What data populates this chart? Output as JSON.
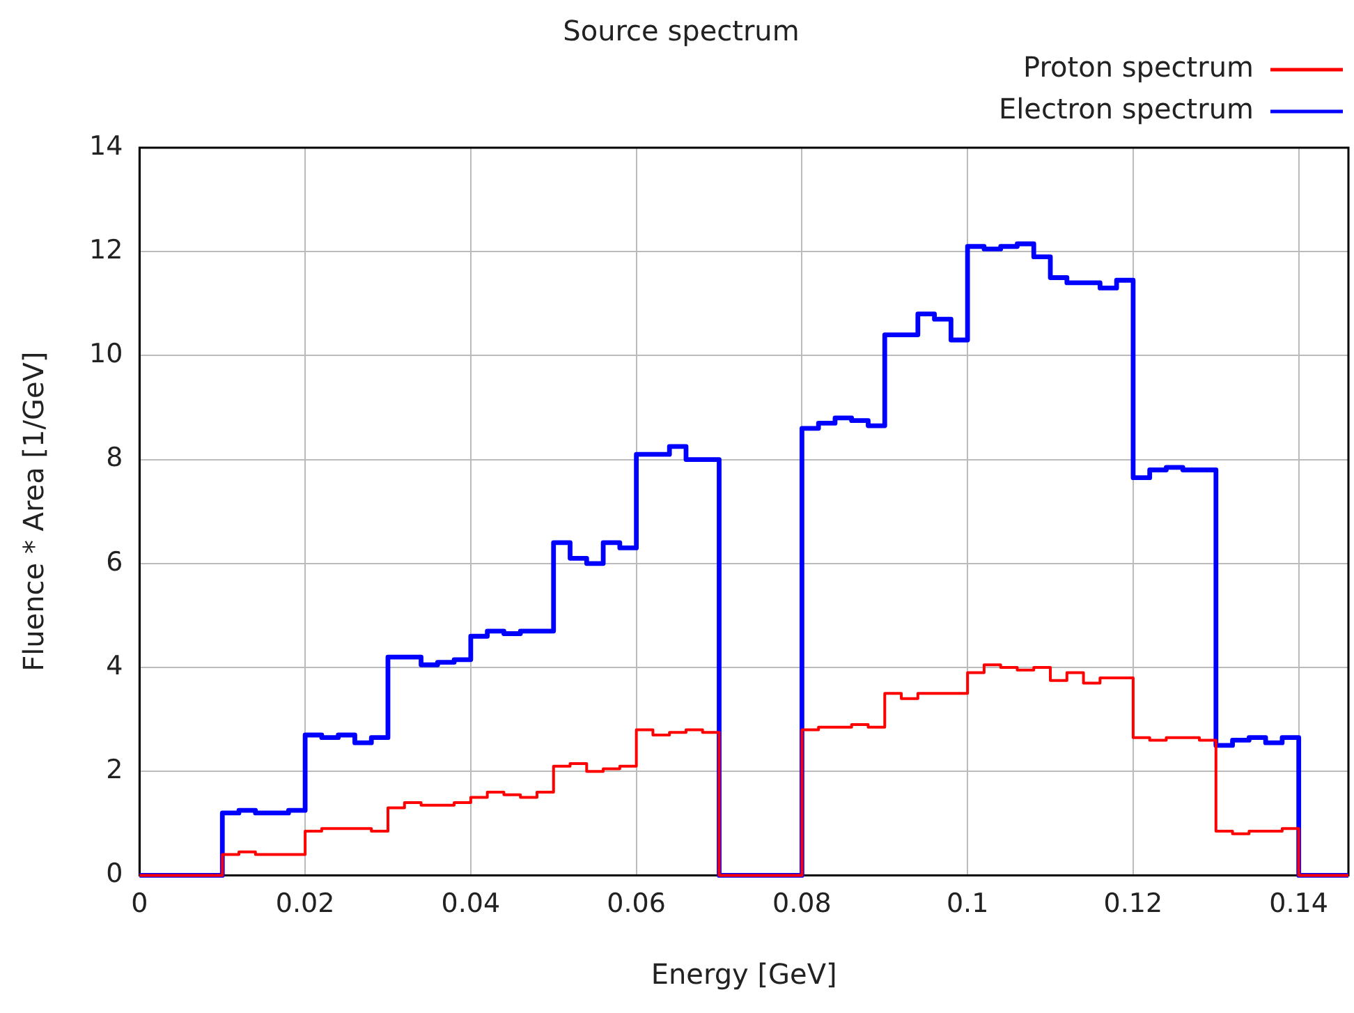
{
  "chart_data": {
    "type": "step",
    "title": "Source spectrum",
    "xlabel": "Energy [GeV]",
    "ylabel": "Fluence * Area [1/GeV]",
    "x": [
      0,
      0.002,
      0.004,
      0.006,
      0.008,
      0.01,
      0.012,
      0.014,
      0.016,
      0.018,
      0.02,
      0.022,
      0.024,
      0.026,
      0.028,
      0.03,
      0.032,
      0.034,
      0.036,
      0.038,
      0.04,
      0.042,
      0.044,
      0.046,
      0.048,
      0.05,
      0.052,
      0.054,
      0.056,
      0.058,
      0.06,
      0.062,
      0.064,
      0.066,
      0.068,
      0.07,
      0.072,
      0.074,
      0.076,
      0.078,
      0.08,
      0.082,
      0.084,
      0.086,
      0.088,
      0.09,
      0.092,
      0.094,
      0.096,
      0.098,
      0.1,
      0.102,
      0.104,
      0.106,
      0.108,
      0.11,
      0.112,
      0.114,
      0.116,
      0.118,
      0.12,
      0.122,
      0.124,
      0.126,
      0.128,
      0.13,
      0.132,
      0.134,
      0.136,
      0.138,
      0.14,
      0.142,
      0.144,
      0.146
    ],
    "series": [
      {
        "name": "Proton spectrum",
        "color": "#ff0000",
        "values": [
          0,
          0,
          0,
          0,
          0,
          0.4,
          0.45,
          0.4,
          0.4,
          0.4,
          0.85,
          0.9,
          0.9,
          0.9,
          0.85,
          1.3,
          1.4,
          1.35,
          1.35,
          1.4,
          1.5,
          1.6,
          1.55,
          1.5,
          1.6,
          2.1,
          2.15,
          2.0,
          2.05,
          2.1,
          2.8,
          2.7,
          2.75,
          2.8,
          2.75,
          0,
          0,
          0,
          0,
          0,
          2.8,
          2.85,
          2.85,
          2.9,
          2.85,
          3.5,
          3.4,
          3.5,
          3.5,
          3.5,
          3.9,
          4.05,
          4.0,
          3.95,
          4.0,
          3.75,
          3.9,
          3.7,
          3.8,
          3.8,
          2.65,
          2.6,
          2.65,
          2.65,
          2.6,
          0.85,
          0.8,
          0.85,
          0.85,
          0.9,
          0,
          0,
          0,
          0
        ]
      },
      {
        "name": "Electron spectrum",
        "color": "#0000ff",
        "values": [
          0,
          0,
          0,
          0,
          0,
          1.2,
          1.25,
          1.2,
          1.2,
          1.25,
          2.7,
          2.65,
          2.7,
          2.55,
          2.65,
          4.2,
          4.2,
          4.05,
          4.1,
          4.15,
          4.6,
          4.7,
          4.65,
          4.7,
          4.7,
          6.4,
          6.1,
          6.0,
          6.4,
          6.3,
          8.1,
          8.1,
          8.25,
          8.0,
          8.0,
          0,
          0,
          0,
          0,
          0,
          8.6,
          8.7,
          8.8,
          8.75,
          8.65,
          10.4,
          10.4,
          10.8,
          10.7,
          10.3,
          12.1,
          12.05,
          12.1,
          12.15,
          11.9,
          11.5,
          11.4,
          11.4,
          11.3,
          11.45,
          7.65,
          7.8,
          7.85,
          7.8,
          7.8,
          2.5,
          2.6,
          2.65,
          2.55,
          2.65,
          0,
          0,
          0,
          0
        ]
      }
    ],
    "xlim": [
      0,
      0.146
    ],
    "xticks": [
      0,
      0.02,
      0.04,
      0.06,
      0.08,
      0.1,
      0.12,
      0.14
    ],
    "ylim": [
      0,
      14
    ],
    "yticks": [
      0,
      2,
      4,
      6,
      8,
      10,
      12,
      14
    ],
    "grid": true,
    "legend": "top right",
    "line_style": "solid",
    "marker": "none"
  }
}
